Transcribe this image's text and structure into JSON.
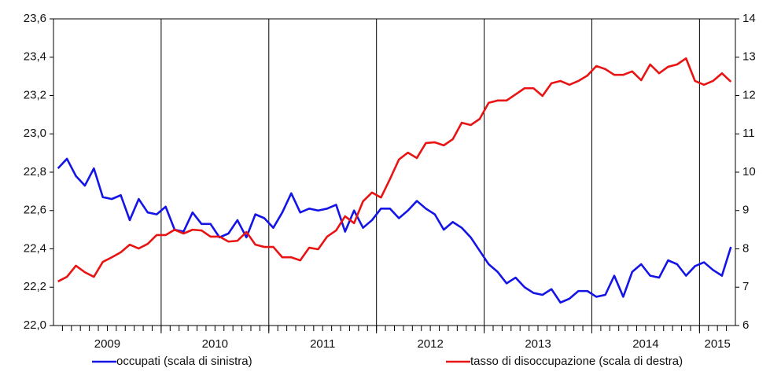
{
  "chart_data": {
    "type": "line",
    "categories": [
      "2009",
      null,
      null,
      null,
      null,
      null,
      null,
      null,
      null,
      null,
      null,
      null,
      "2010",
      null,
      null,
      null,
      null,
      null,
      null,
      null,
      null,
      null,
      null,
      null,
      "2011",
      null,
      null,
      null,
      null,
      null,
      null,
      null,
      null,
      null,
      null,
      null,
      "2012",
      null,
      null,
      null,
      null,
      null,
      null,
      null,
      null,
      null,
      null,
      null,
      "2013",
      null,
      null,
      null,
      null,
      null,
      null,
      null,
      null,
      null,
      null,
      null,
      "2014",
      null,
      null,
      null,
      null,
      null,
      null,
      null,
      null,
      null,
      null,
      null,
      "2015",
      null,
      null,
      null
    ],
    "series": [
      {
        "name": "occupati (scala di sinistra)",
        "color": "#1414e6",
        "axis": "y",
        "values": [
          22.82,
          22.87,
          22.78,
          22.73,
          22.82,
          22.67,
          22.66,
          22.68,
          22.55,
          22.66,
          22.59,
          22.58,
          22.62,
          22.5,
          22.49,
          22.59,
          22.53,
          22.53,
          22.46,
          22.48,
          22.55,
          22.46,
          22.58,
          22.56,
          22.51,
          22.59,
          22.69,
          22.59,
          22.61,
          22.6,
          22.61,
          22.63,
          22.49,
          22.6,
          22.51,
          22.55,
          22.61,
          22.61,
          22.56,
          22.6,
          22.65,
          22.61,
          22.58,
          22.5,
          22.54,
          22.51,
          22.46,
          22.39,
          22.32,
          22.28,
          22.22,
          22.25,
          22.2,
          22.17,
          22.16,
          22.19,
          22.12,
          22.14,
          22.18,
          22.18,
          22.15,
          22.16,
          22.26,
          22.15,
          22.28,
          22.32,
          22.26,
          22.25,
          22.34,
          22.32,
          22.26,
          22.31,
          22.33,
          22.29,
          22.26,
          22.41
        ]
      },
      {
        "name": "tasso di disoccupazione (scala di destra)",
        "color": "#e81414",
        "axis": "y2",
        "values": [
          7.15,
          7.27,
          7.56,
          7.39,
          7.27,
          7.66,
          7.78,
          7.91,
          8.11,
          8.01,
          8.13,
          8.36,
          8.36,
          8.5,
          8.4,
          8.5,
          8.48,
          8.32,
          8.32,
          8.19,
          8.21,
          8.44,
          8.11,
          8.05,
          8.05,
          7.78,
          7.78,
          7.7,
          8.03,
          7.99,
          8.32,
          8.48,
          8.85,
          8.67,
          9.24,
          9.47,
          9.34,
          9.82,
          10.33,
          10.51,
          10.37,
          10.76,
          10.78,
          10.7,
          10.86,
          11.29,
          11.23,
          11.39,
          11.81,
          11.87,
          11.87,
          12.03,
          12.19,
          12.19,
          11.99,
          12.32,
          12.38,
          12.28,
          12.38,
          12.52,
          12.77,
          12.69,
          12.54,
          12.54,
          12.63,
          12.4,
          12.81,
          12.58,
          12.75,
          12.81,
          12.97,
          12.38,
          12.28,
          12.38,
          12.58,
          12.36
        ]
      }
    ],
    "ylim": [
      22.0,
      23.6
    ],
    "yticks": [
      {
        "value": 22.0,
        "label": "22,0"
      },
      {
        "value": 22.2,
        "label": "22,2"
      },
      {
        "value": 22.4,
        "label": "22,4"
      },
      {
        "value": 22.6,
        "label": "22,6"
      },
      {
        "value": 22.8,
        "label": "22,8"
      },
      {
        "value": 23.0,
        "label": "23,0"
      },
      {
        "value": 23.2,
        "label": "23,2"
      },
      {
        "value": 23.4,
        "label": "23,4"
      },
      {
        "value": 23.6,
        "label": "23,6"
      }
    ],
    "y2lim": [
      6,
      14
    ],
    "y2ticks": [
      6,
      7,
      8,
      9,
      10,
      11,
      12,
      13,
      14
    ],
    "grid": false,
    "legend": "bottom"
  }
}
